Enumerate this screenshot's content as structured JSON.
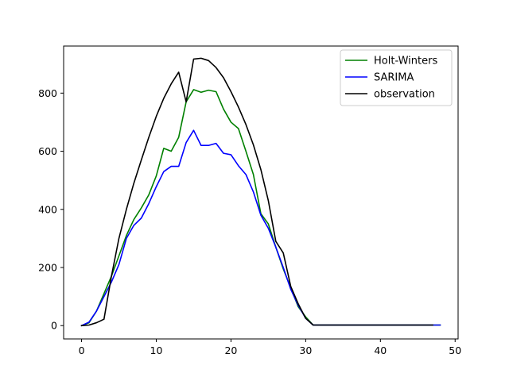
{
  "chart_data": {
    "type": "line",
    "title": "",
    "xlabel": "",
    "ylabel": "",
    "xlim": [
      -2.4,
      50.4
    ],
    "ylim": [
      -45.8,
      962
    ],
    "xticks": [
      0,
      10,
      20,
      30,
      40,
      50
    ],
    "yticks": [
      0,
      200,
      400,
      600,
      800
    ],
    "grid": false,
    "legend_position": "upper-right",
    "series": [
      {
        "name": "Holt-Winters",
        "color": "#008000",
        "x": [
          0,
          1,
          2,
          3,
          4,
          5,
          6,
          7,
          8,
          9,
          10,
          11,
          12,
          13,
          14,
          15,
          16,
          17,
          18,
          19,
          20,
          21,
          22,
          23,
          24,
          25,
          26,
          27,
          28,
          29,
          30,
          31,
          32,
          33,
          34,
          35,
          36,
          37,
          38,
          39,
          40,
          41,
          42,
          43,
          44,
          45,
          46,
          47,
          48
        ],
        "y": [
          0,
          10,
          50,
          110,
          170,
          240,
          310,
          365,
          405,
          450,
          515,
          610,
          600,
          648,
          770,
          812,
          803,
          810,
          805,
          745,
          700,
          678,
          600,
          520,
          385,
          350,
          270,
          195,
          130,
          65,
          30,
          2,
          2,
          2,
          2,
          2,
          2,
          2,
          2,
          2,
          2,
          2,
          2,
          2,
          2,
          2,
          2,
          2,
          2
        ]
      },
      {
        "name": "SARIMA",
        "color": "#0000ff",
        "x": [
          0,
          1,
          2,
          3,
          4,
          5,
          6,
          7,
          8,
          9,
          10,
          11,
          12,
          13,
          14,
          15,
          16,
          17,
          18,
          19,
          20,
          21,
          22,
          23,
          24,
          25,
          26,
          27,
          28,
          29,
          30,
          31,
          32,
          33,
          34,
          35,
          36,
          37,
          38,
          39,
          40,
          41,
          42,
          43,
          44,
          45,
          46,
          47,
          48
        ],
        "y": [
          0,
          12,
          50,
          100,
          150,
          210,
          300,
          345,
          370,
          420,
          478,
          530,
          548,
          548,
          630,
          672,
          620,
          620,
          627,
          593,
          588,
          550,
          520,
          460,
          380,
          335,
          270,
          200,
          125,
          70,
          25,
          2,
          2,
          2,
          2,
          2,
          2,
          2,
          2,
          2,
          2,
          2,
          2,
          2,
          2,
          2,
          2,
          2,
          2
        ]
      },
      {
        "name": "observation",
        "color": "#000000",
        "x": [
          0,
          1,
          2,
          3,
          4,
          5,
          6,
          7,
          8,
          9,
          10,
          11,
          12,
          13,
          14,
          15,
          16,
          17,
          18,
          19,
          20,
          21,
          22,
          23,
          24,
          25,
          26,
          27,
          28,
          29,
          30,
          31,
          32,
          33,
          34,
          35,
          36,
          37,
          38,
          39,
          40,
          41,
          42,
          43,
          44,
          45,
          46,
          47
        ],
        "y": [
          0,
          2,
          10,
          22,
          170,
          300,
          400,
          490,
          570,
          648,
          720,
          782,
          832,
          872,
          770,
          917,
          920,
          912,
          888,
          853,
          805,
          752,
          692,
          622,
          537,
          430,
          290,
          250,
          135,
          75,
          25,
          2,
          2,
          2,
          2,
          2,
          2,
          2,
          2,
          2,
          2,
          2,
          2,
          2,
          2,
          2,
          2,
          2
        ]
      }
    ]
  }
}
